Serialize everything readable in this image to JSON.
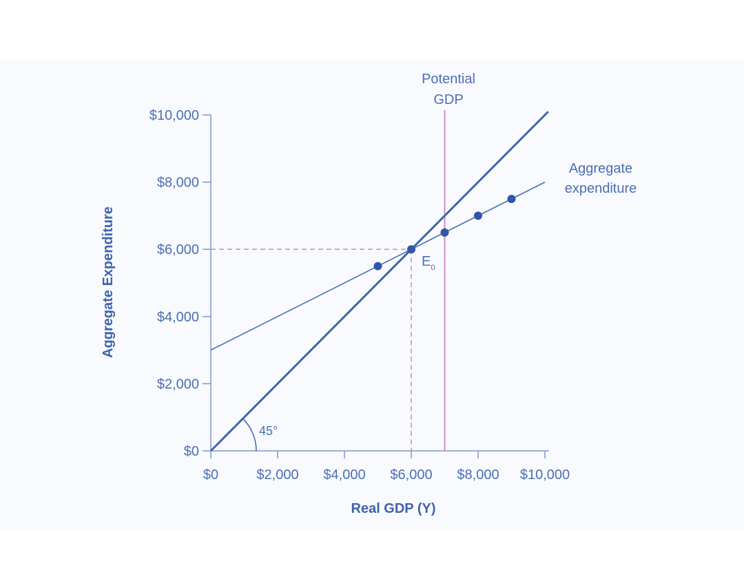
{
  "chart_data": {
    "type": "line",
    "title": "",
    "xlabel": "Real GDP (Y)",
    "ylabel": "Aggregate Expenditure",
    "xlim": [
      0,
      10000
    ],
    "ylim": [
      0,
      10000
    ],
    "grid": false,
    "x_ticks": [
      0,
      2000,
      4000,
      6000,
      8000,
      10000
    ],
    "x_tick_labels": [
      "$0",
      "$2,000",
      "$4,000",
      "$6,000",
      "$8,000",
      "$10,000"
    ],
    "y_ticks": [
      0,
      2000,
      4000,
      6000,
      8000,
      10000
    ],
    "y_tick_labels": [
      "$0",
      "$2,000",
      "$4,000",
      "$6,000",
      "$8,000",
      "$10,000"
    ],
    "series": [
      {
        "name": "",
        "kind": "45-degree line",
        "x": [
          0,
          10100
        ],
        "y": [
          0,
          10100
        ],
        "color": "#3e63ad"
      },
      {
        "name": "Aggregate expenditure",
        "x": [
          0,
          10000
        ],
        "y": [
          3000,
          8000
        ],
        "color": "#4a6fb5"
      }
    ],
    "points": {
      "x": [
        5000,
        6000,
        7000,
        8000,
        9000
      ],
      "y": [
        5500,
        6000,
        6500,
        7000,
        7500
      ],
      "color": "#2f56a8"
    },
    "potential_gdp": {
      "label_line1": "Potential",
      "label_line2": "GDP",
      "x": 7000,
      "color": "#d58ad0"
    },
    "equilibrium": {
      "label": "E",
      "subscript": "0",
      "x": 6000,
      "y": 6000,
      "color": "#d58ad0"
    },
    "angle_label": "45°",
    "colors": {
      "axis": "#7f95c9",
      "text": "#4a6fb5",
      "axis_title": "#3e63ad"
    }
  }
}
